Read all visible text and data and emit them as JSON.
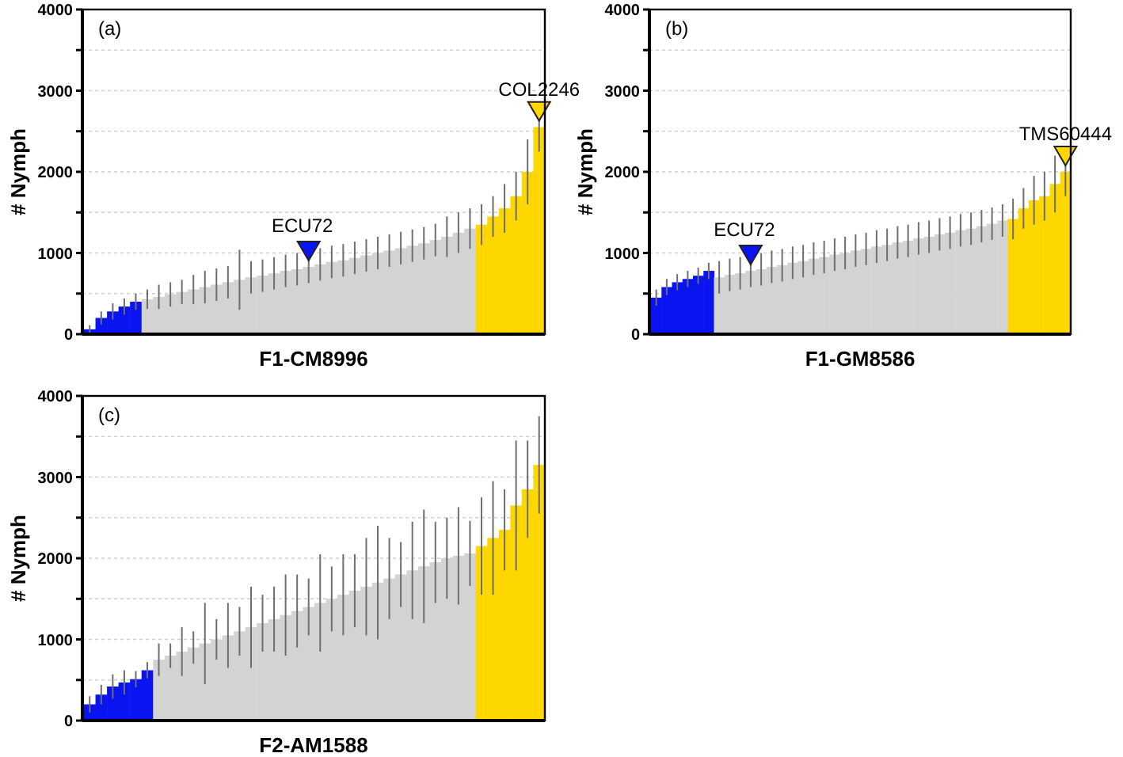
{
  "chart_data": [
    {
      "type": "bar",
      "xlabel": "F1-CM8996",
      "ylabel": "# Nymph",
      "annotations": [
        "(a)"
      ],
      "categories": [
        null,
        null,
        null,
        null,
        null,
        null,
        null,
        null,
        null,
        null,
        null,
        null,
        null,
        null,
        null,
        null,
        null,
        null,
        null,
        null,
        null,
        null,
        null,
        null,
        null,
        null,
        null,
        null,
        null,
        null,
        null,
        null,
        null,
        null,
        null,
        null,
        null,
        null,
        null,
        null
      ],
      "ylim": [
        0,
        4000
      ],
      "yticks": [
        0,
        {
          "value": 500,
          "label": null
        },
        1000,
        {
          "value": 1500,
          "label": null
        },
        2000,
        {
          "value": 2500,
          "label": null
        },
        3000,
        {
          "value": 3500,
          "label": null
        },
        4000
      ],
      "grid": "y",
      "tick_labels": "y",
      "series": [
        {
          "values": [
            60,
            200,
            280,
            340,
            400,
            430,
            460,
            490,
            520,
            550,
            580,
            610,
            640,
            670,
            700,
            720,
            750,
            780,
            800,
            830,
            860,
            890,
            910,
            940,
            970,
            1000,
            1030,
            1060,
            1090,
            1120,
            1160,
            1200,
            1250,
            1300,
            1350,
            1450,
            1550,
            1700,
            2000,
            2550
          ],
          "errors": [
            50,
            80,
            100,
            100,
            100,
            120,
            150,
            150,
            150,
            180,
            200,
            200,
            200,
            370,
            200,
            200,
            200,
            200,
            200,
            200,
            200,
            200,
            200,
            200,
            200,
            200,
            200,
            200,
            200,
            200,
            200,
            250,
            250,
            250,
            250,
            250,
            300,
            300,
            400,
            300
          ],
          "value_labels": [
            null,
            null,
            null,
            null,
            null,
            null,
            null,
            null,
            null,
            null,
            null,
            null,
            null,
            null,
            null,
            null,
            null,
            null,
            null,
            "ECU72",
            null,
            null,
            null,
            null,
            null,
            null,
            null,
            null,
            null,
            null,
            null,
            null,
            null,
            null,
            null,
            null,
            null,
            null,
            null,
            "COL2246"
          ],
          "colors": [
            "#0a14f0",
            "#0a14f0",
            "#0a14f0",
            "#0a14f0",
            "#0a14f0",
            "#d3d3d3",
            "#d3d3d3",
            "#d3d3d3",
            "#d3d3d3",
            "#d3d3d3",
            "#d3d3d3",
            "#d3d3d3",
            "#d3d3d3",
            "#d3d3d3",
            "#d3d3d3",
            "#d3d3d3",
            "#d3d3d3",
            "#d3d3d3",
            "#d3d3d3",
            "#d3d3d3",
            "#d3d3d3",
            "#d3d3d3",
            "#d3d3d3",
            "#d3d3d3",
            "#d3d3d3",
            "#d3d3d3",
            "#d3d3d3",
            "#d3d3d3",
            "#d3d3d3",
            "#d3d3d3",
            "#d3d3d3",
            "#d3d3d3",
            "#d3d3d3",
            "#d3d3d3",
            "#ffd700",
            "#ffd700",
            "#ffd700",
            "#ffd700",
            "#ffd700",
            "#ffd700"
          ]
        }
      ]
    },
    {
      "type": "bar",
      "xlabel": "F1-GM8586",
      "ylabel": "# Nymph",
      "annotations": [
        "(b)"
      ],
      "categories": [
        null,
        null,
        null,
        null,
        null,
        null,
        null,
        null,
        null,
        null,
        null,
        null,
        null,
        null,
        null,
        null,
        null,
        null,
        null,
        null,
        null,
        null,
        null,
        null,
        null,
        null,
        null,
        null,
        null,
        null,
        null,
        null,
        null,
        null,
        null,
        null,
        null,
        null,
        null,
        null
      ],
      "ylim": [
        0,
        4000
      ],
      "yticks": [
        0,
        {
          "value": 500,
          "label": null
        },
        1000,
        {
          "value": 1500,
          "label": null
        },
        2000,
        {
          "value": 2500,
          "label": null
        },
        3000,
        {
          "value": 3500,
          "label": null
        },
        4000
      ],
      "grid": "y",
      "tick_labels": "y",
      "series": [
        {
          "values": [
            450,
            580,
            640,
            680,
            720,
            780,
            700,
            730,
            750,
            780,
            800,
            830,
            850,
            880,
            900,
            930,
            950,
            980,
            1000,
            1030,
            1050,
            1080,
            1100,
            1130,
            1150,
            1180,
            1200,
            1230,
            1250,
            1280,
            1300,
            1330,
            1360,
            1400,
            1420,
            1550,
            1650,
            1700,
            1850,
            2000
          ],
          "errors": [
            100,
            100,
            100,
            100,
            100,
            100,
            200,
            200,
            200,
            200,
            200,
            200,
            200,
            200,
            200,
            200,
            200,
            200,
            200,
            200,
            200,
            200,
            200,
            200,
            200,
            200,
            200,
            200,
            200,
            200,
            200,
            200,
            200,
            200,
            250,
            250,
            300,
            300,
            350,
            300
          ],
          "value_labels": [
            null,
            null,
            null,
            null,
            null,
            null,
            null,
            null,
            null,
            "ECU72",
            null,
            null,
            null,
            null,
            null,
            null,
            null,
            null,
            null,
            null,
            null,
            null,
            null,
            null,
            null,
            null,
            null,
            null,
            null,
            null,
            null,
            null,
            null,
            null,
            null,
            null,
            null,
            null,
            null,
            "TMS60444"
          ],
          "colors": [
            "#0a14f0",
            "#0a14f0",
            "#0a14f0",
            "#0a14f0",
            "#0a14f0",
            "#0a14f0",
            "#d3d3d3",
            "#d3d3d3",
            "#d3d3d3",
            "#d3d3d3",
            "#d3d3d3",
            "#d3d3d3",
            "#d3d3d3",
            "#d3d3d3",
            "#d3d3d3",
            "#d3d3d3",
            "#d3d3d3",
            "#d3d3d3",
            "#d3d3d3",
            "#d3d3d3",
            "#d3d3d3",
            "#d3d3d3",
            "#d3d3d3",
            "#d3d3d3",
            "#d3d3d3",
            "#d3d3d3",
            "#d3d3d3",
            "#d3d3d3",
            "#d3d3d3",
            "#d3d3d3",
            "#d3d3d3",
            "#d3d3d3",
            "#d3d3d3",
            "#d3d3d3",
            "#ffd700",
            "#ffd700",
            "#ffd700",
            "#ffd700",
            "#ffd700",
            "#ffd700"
          ]
        }
      ]
    },
    {
      "type": "bar",
      "xlabel": "F2-AM1588",
      "ylabel": "# Nymph",
      "annotations": [
        "(c)"
      ],
      "categories": [
        null,
        null,
        null,
        null,
        null,
        null,
        null,
        null,
        null,
        null,
        null,
        null,
        null,
        null,
        null,
        null,
        null,
        null,
        null,
        null,
        null,
        null,
        null,
        null,
        null,
        null,
        null,
        null,
        null,
        null,
        null,
        null,
        null,
        null,
        null,
        null,
        null,
        null,
        null,
        null
      ],
      "ylim": [
        0,
        4000
      ],
      "yticks": [
        0,
        {
          "value": 500,
          "label": null
        },
        1000,
        {
          "value": 1500,
          "label": null
        },
        2000,
        {
          "value": 2500,
          "label": null
        },
        3000,
        {
          "value": 3500,
          "label": null
        },
        4000
      ],
      "grid": "y",
      "tick_labels": "y",
      "series": [
        {
          "values": [
            200,
            320,
            420,
            470,
            510,
            620,
            750,
            800,
            850,
            900,
            950,
            1000,
            1050,
            1100,
            1150,
            1200,
            1250,
            1300,
            1350,
            1400,
            1450,
            1500,
            1550,
            1600,
            1650,
            1700,
            1750,
            1800,
            1850,
            1900,
            1950,
            2000,
            2030,
            2060,
            2150,
            2250,
            2350,
            2650,
            2850,
            3150
          ],
          "errors": [
            100,
            120,
            150,
            150,
            100,
            100,
            200,
            150,
            300,
            200,
            500,
            250,
            400,
            300,
            500,
            350,
            400,
            500,
            450,
            350,
            600,
            400,
            500,
            450,
            600,
            700,
            500,
            400,
            600,
            700,
            500,
            500,
            600,
            400,
            600,
            700,
            500,
            800,
            600,
            600
          ],
          "colors": [
            "#0a14f0",
            "#0a14f0",
            "#0a14f0",
            "#0a14f0",
            "#0a14f0",
            "#0a14f0",
            "#d3d3d3",
            "#d3d3d3",
            "#d3d3d3",
            "#d3d3d3",
            "#d3d3d3",
            "#d3d3d3",
            "#d3d3d3",
            "#d3d3d3",
            "#d3d3d3",
            "#d3d3d3",
            "#d3d3d3",
            "#d3d3d3",
            "#d3d3d3",
            "#d3d3d3",
            "#d3d3d3",
            "#d3d3d3",
            "#d3d3d3",
            "#d3d3d3",
            "#d3d3d3",
            "#d3d3d3",
            "#d3d3d3",
            "#d3d3d3",
            "#d3d3d3",
            "#d3d3d3",
            "#d3d3d3",
            "#d3d3d3",
            "#d3d3d3",
            "#d3d3d3",
            "#ffd700",
            "#ffd700",
            "#ffd700",
            "#ffd700",
            "#ffd700",
            "#ffd700"
          ]
        }
      ]
    }
  ]
}
